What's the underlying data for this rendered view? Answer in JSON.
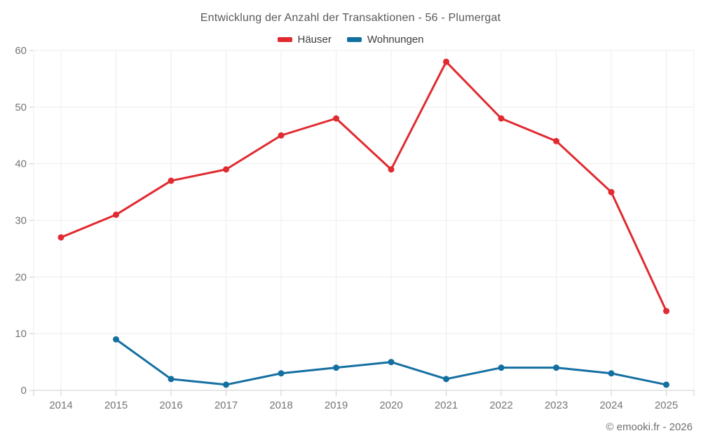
{
  "chart": {
    "title": "Entwicklung der Anzahl der Transaktionen - 56 - Plumergat",
    "footer": "© emooki.fr - 2026"
  },
  "chart_data": {
    "type": "line",
    "title": "Entwicklung der Anzahl der Transaktionen - 56 - Plumergat",
    "categories": [
      "2014",
      "2015",
      "2016",
      "2017",
      "2018",
      "2019",
      "2020",
      "2021",
      "2022",
      "2023",
      "2024",
      "2025"
    ],
    "series": [
      {
        "name": "Häuser",
        "color": "#e02a30",
        "values": [
          27,
          31,
          37,
          39,
          45,
          48,
          39,
          58,
          48,
          44,
          35,
          14
        ]
      },
      {
        "name": "Wohnungen",
        "color": "#146fa1",
        "values": [
          null,
          9,
          2,
          1,
          3,
          4,
          5,
          2,
          4,
          4,
          3,
          1
        ]
      }
    ],
    "xlabel": "",
    "ylabel": "",
    "ylim": [
      0,
      60
    ],
    "yticks": [
      0,
      10,
      20,
      30,
      40,
      50,
      60
    ],
    "grid": true,
    "legend_position": "top",
    "colors": {
      "gridline": "#ececec",
      "axis_line": "#cccccc",
      "tick_label": "#757575"
    }
  }
}
